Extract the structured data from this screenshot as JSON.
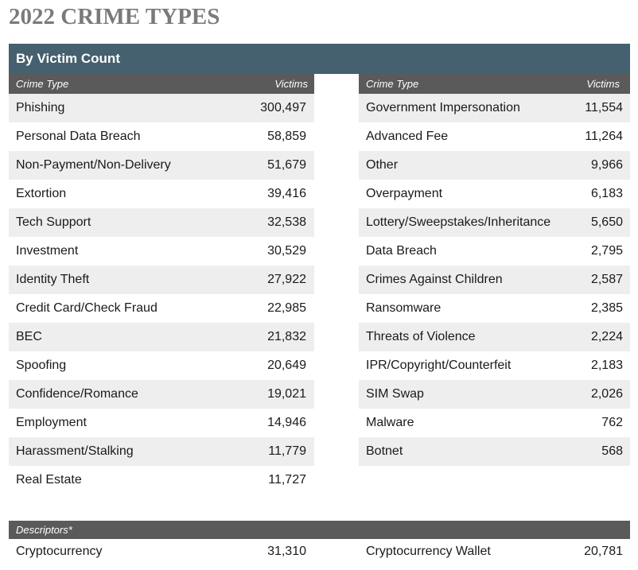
{
  "page_title": "2022 CRIME TYPES",
  "section_title": "By Victim Count",
  "columns": {
    "type_label": "Crime Type",
    "victims_label": "Victims"
  },
  "left_table": [
    {
      "type": "Phishing",
      "victims": "300,497"
    },
    {
      "type": "Personal Data Breach",
      "victims": "58,859"
    },
    {
      "type": "Non-Payment/Non-Delivery",
      "victims": "51,679"
    },
    {
      "type": "Extortion",
      "victims": "39,416"
    },
    {
      "type": "Tech Support",
      "victims": "32,538"
    },
    {
      "type": "Investment",
      "victims": "30,529"
    },
    {
      "type": "Identity Theft",
      "victims": "27,922"
    },
    {
      "type": "Credit Card/Check Fraud",
      "victims": "22,985"
    },
    {
      "type": "BEC",
      "victims": "21,832"
    },
    {
      "type": "Spoofing",
      "victims": "20,649"
    },
    {
      "type": "Confidence/Romance",
      "victims": "19,021"
    },
    {
      "type": "Employment",
      "victims": "14,946"
    },
    {
      "type": "Harassment/Stalking",
      "victims": "11,779"
    },
    {
      "type": "Real Estate",
      "victims": "11,727"
    }
  ],
  "right_table": [
    {
      "type": "Government Impersonation",
      "victims": "11,554"
    },
    {
      "type": "Advanced Fee",
      "victims": "11,264"
    },
    {
      "type": "Other",
      "victims": "9,966"
    },
    {
      "type": "Overpayment",
      "victims": "6,183"
    },
    {
      "type": "Lottery/Sweepstakes/Inheritance",
      "victims": "5,650"
    },
    {
      "type": "Data Breach",
      "victims": "2,795"
    },
    {
      "type": "Crimes Against Children",
      "victims": "2,587"
    },
    {
      "type": "Ransomware",
      "victims": "2,385"
    },
    {
      "type": "Threats of Violence",
      "victims": "2,224"
    },
    {
      "type": "IPR/Copyright/Counterfeit",
      "victims": "2,183"
    },
    {
      "type": "SIM Swap",
      "victims": "2,026"
    },
    {
      "type": "Malware",
      "victims": "762"
    },
    {
      "type": "Botnet",
      "victims": "568"
    },
    {
      "type": "",
      "victims": ""
    }
  ],
  "descriptors": {
    "label": "Descriptors*",
    "items": [
      {
        "type": "Cryptocurrency",
        "victims": "31,310"
      },
      {
        "type": "Cryptocurrency Wallet",
        "victims": "20,781"
      }
    ]
  }
}
